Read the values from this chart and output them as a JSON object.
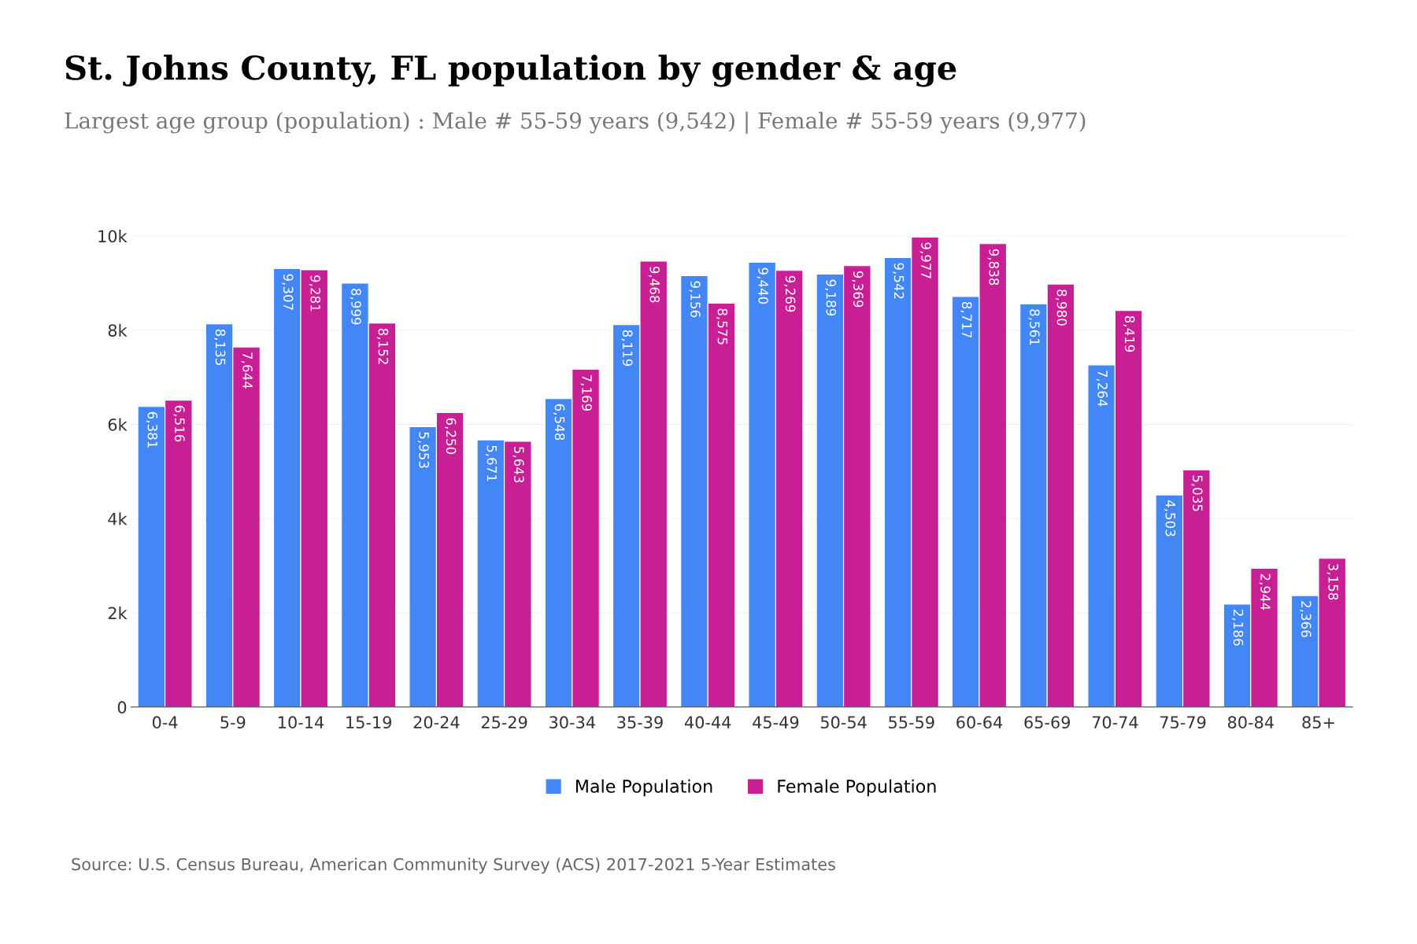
{
  "chart_data": {
    "type": "bar",
    "title": "St. Johns County, FL population by gender & age",
    "subtitle": "Largest age group (population) : Male # 55-59 years (9,542) | Female # 55-59 years (9,977)",
    "categories": [
      "0-4",
      "5-9",
      "10-14",
      "15-19",
      "20-24",
      "25-29",
      "30-34",
      "35-39",
      "40-44",
      "45-49",
      "50-54",
      "55-59",
      "60-64",
      "65-69",
      "70-74",
      "75-79",
      "80-84",
      "85+"
    ],
    "series": [
      {
        "name": "Male Population",
        "color": "#4287f5",
        "values": [
          6381,
          8135,
          9307,
          8999,
          5953,
          5671,
          6548,
          8119,
          9156,
          9440,
          9189,
          9542,
          8717,
          8561,
          7264,
          4503,
          2186,
          2366
        ],
        "value_labels": [
          "6,381",
          "8,135",
          "9,307",
          "8,999",
          "5,953",
          "5,671",
          "6,548",
          "8,119",
          "9,156",
          "9,440",
          "9,189",
          "9,542",
          "8,717",
          "8,561",
          "7,264",
          "4,503",
          "2,186",
          "2,366"
        ]
      },
      {
        "name": "Female Population",
        "color": "#c91f94",
        "values": [
          6516,
          7644,
          9281,
          8152,
          6250,
          5643,
          7169,
          9468,
          8575,
          9269,
          9369,
          9977,
          9838,
          8980,
          8419,
          5035,
          2944,
          3158
        ],
        "value_labels": [
          "6,516",
          "7,644",
          "9,281",
          "8,152",
          "6,250",
          "5,643",
          "7,169",
          "9,468",
          "8,575",
          "9,269",
          "9,369",
          "9,977",
          "9,838",
          "8,980",
          "8,419",
          "5,035",
          "2,944",
          "3,158"
        ]
      }
    ],
    "ylim": [
      0,
      10000
    ],
    "yticks": [
      0,
      {
        "value": 2000,
        "label": "2k"
      },
      {
        "value": 4000,
        "label": "4k"
      },
      {
        "value": 6000,
        "label": "6k"
      },
      {
        "value": 8000,
        "label": "8k"
      },
      {
        "value": 10000,
        "label": "10k"
      }
    ],
    "grid": "y",
    "legend": "bottom",
    "annotations": [
      "Source: U.S. Census Bureau, American Community Survey (ACS) 2017-2021 5-Year Estimates"
    ]
  }
}
